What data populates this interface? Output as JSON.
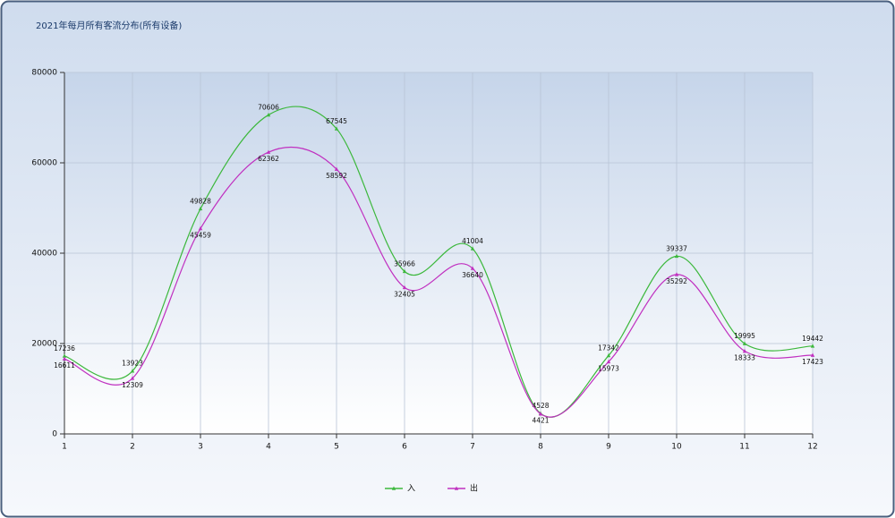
{
  "chart_data": {
    "type": "line",
    "title": "2021年每月所有客流分布(所有设备)",
    "x": [
      1,
      2,
      3,
      4,
      5,
      6,
      7,
      8,
      9,
      10,
      11,
      12
    ],
    "xlim": [
      1,
      12
    ],
    "xticks": [
      1,
      2,
      3,
      4,
      5,
      6,
      7,
      8,
      9,
      10,
      11,
      12
    ],
    "ylim": [
      0,
      80000
    ],
    "yticks": [
      0,
      20000,
      40000,
      60000,
      80000
    ],
    "grid": true,
    "smooth": true,
    "legend": "bottom",
    "series": [
      {
        "name": "入",
        "color": "#3cb83c",
        "values": [
          17236,
          13923,
          49828,
          70606,
          67545,
          35966,
          41004,
          4528,
          17342,
          39337,
          19995,
          19442
        ]
      },
      {
        "name": "出",
        "color": "#c030c0",
        "values": [
          16611,
          12309,
          45459,
          62362,
          58592,
          32405,
          36640,
          4421,
          15973,
          35292,
          18333,
          17423
        ]
      }
    ]
  }
}
